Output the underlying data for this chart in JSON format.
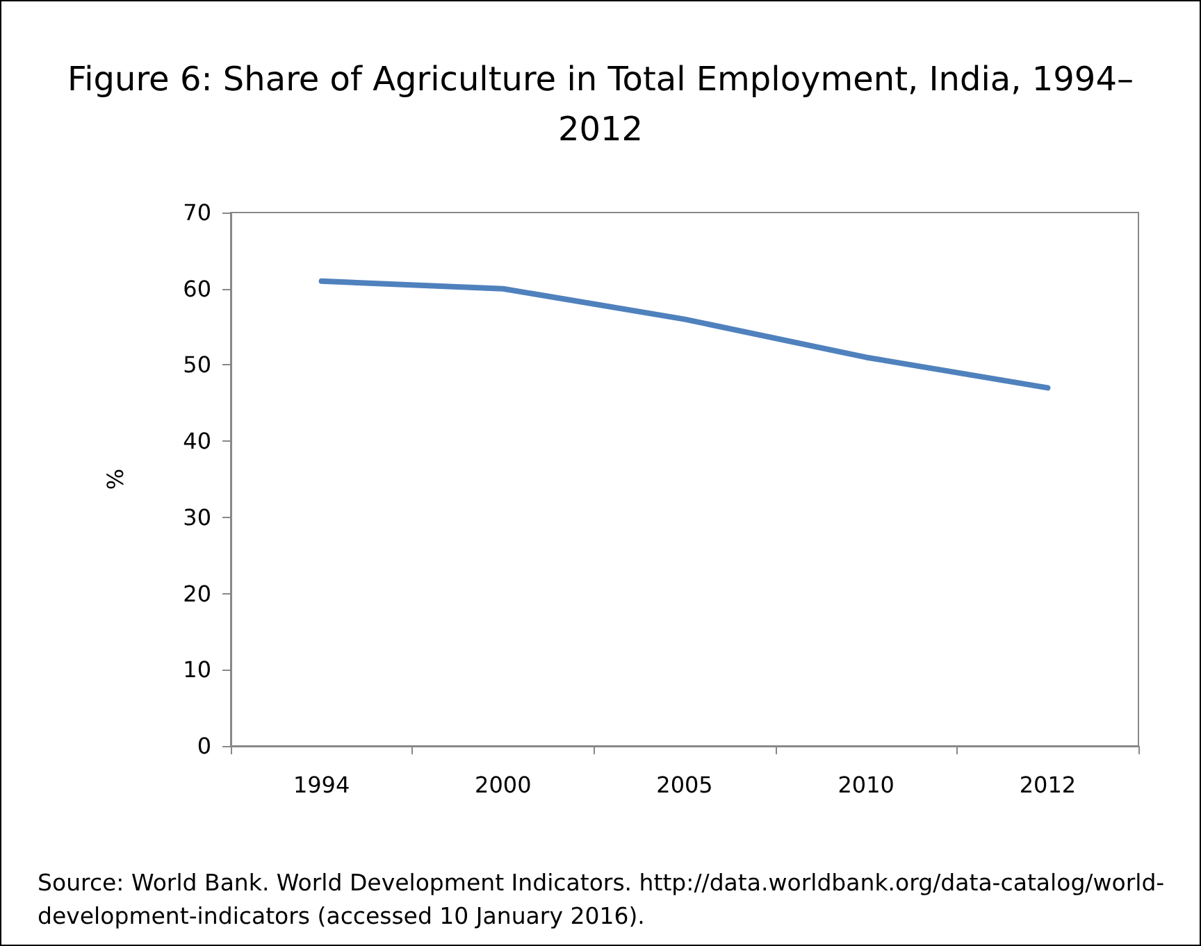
{
  "chart_data": {
    "type": "line",
    "title": "Figure 6: Share of Agriculture in Total Employment, India, 1994–2012",
    "ylabel": "%",
    "categories": [
      "1994",
      "2000",
      "2005",
      "2010",
      "2012"
    ],
    "series": [
      {
        "color": "#4f81bd",
        "values": [
          61,
          60,
          56,
          51,
          47
        ]
      }
    ],
    "ylim": [
      0,
      70
    ],
    "yticks": [
      0,
      10,
      20,
      30,
      40,
      50,
      60,
      70
    ],
    "grid": false,
    "marker": "none",
    "line_style": "solid",
    "annotations": [
      "Source: World Bank. World Development Indicators. http://data.worldbank.org/data-catalog/world-development-indicators (accessed 10 January 2016)."
    ]
  }
}
